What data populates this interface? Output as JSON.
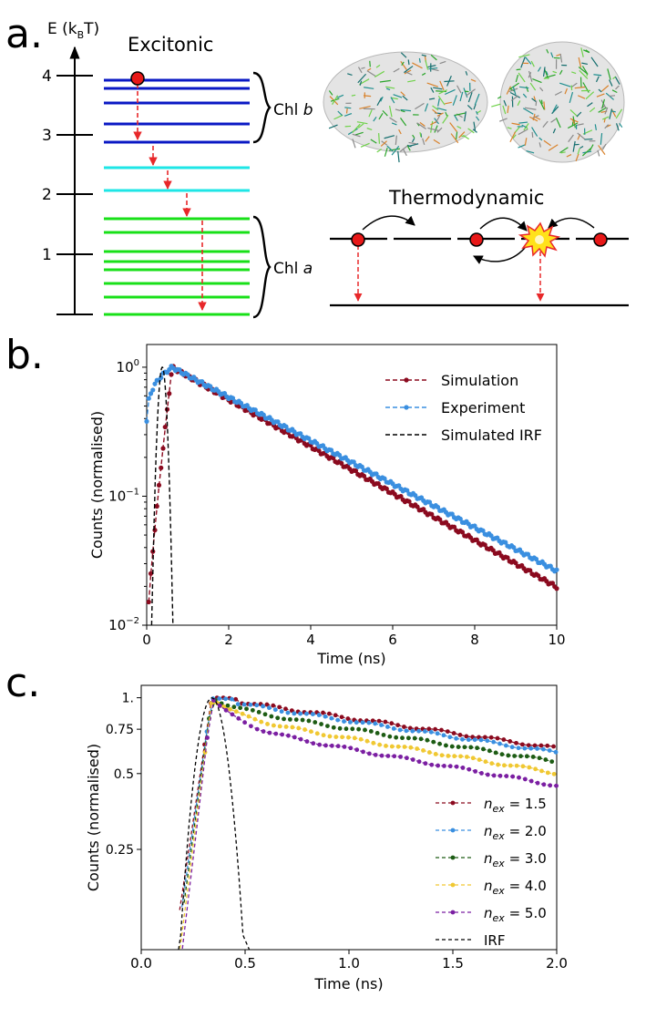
{
  "panel_a": {
    "label": "a.",
    "axis_label_E": "E (k",
    "axis_label_sub": "B",
    "axis_label_close": "T)",
    "ticks": [
      "4",
      "3",
      "2",
      "1"
    ],
    "excitonic_title": "Excitonic",
    "thermodynamic_title": "Thermodynamic",
    "chl_b_label": "Chl ",
    "chl_b_italic": "b",
    "chl_a_label": "Chl ",
    "chl_a_italic": "a",
    "colors": {
      "chl_b": "#0a18c4",
      "mid": "#1ee6e6",
      "chl_a": "#18e018",
      "arrow": "#e8282a",
      "dot": "#e81818"
    }
  },
  "chart_data": [
    {
      "panel": "b.",
      "type": "line",
      "ylog": true,
      "xlabel": "Time (ns)",
      "ylabel": "Counts (normalised)",
      "xlim": [
        0,
        10
      ],
      "ylim": [
        0.01,
        1.5
      ],
      "xticks": [
        "0",
        "2",
        "4",
        "6",
        "8",
        "10"
      ],
      "yticks": [
        {
          "base": "10",
          "exp": "0",
          "value": 1
        },
        {
          "base": "10",
          "exp": "−1",
          "value": 0.1
        },
        {
          "base": "10",
          "exp": "−2",
          "value": 0.01
        }
      ],
      "series": [
        {
          "name": "Simulation",
          "color": "#8b0a1f",
          "dash": true,
          "peak": 0.62,
          "decay": 2.39,
          "rise": 0.16,
          "start": 0.28
        },
        {
          "name": "Experiment",
          "color": "#3a8fe0",
          "dash": true,
          "peak": 0.62,
          "decay": 2.58,
          "rise": 0.22,
          "start": 0.0
        },
        {
          "name": "Simulated IRF",
          "color": "#000000",
          "dash": true,
          "irf": true,
          "center": 0.38,
          "sigma": 0.085
        }
      ],
      "legend": [
        "Simulation",
        "Experiment",
        "Simulated IRF"
      ]
    },
    {
      "panel": "c.",
      "type": "line",
      "ylog": true,
      "xlabel": "Time (ns)",
      "ylabel": "Counts (normalised)",
      "xlim": [
        0,
        2
      ],
      "ylim": [
        0.1,
        1.12
      ],
      "xticks": [
        "0.0",
        "0.5",
        "1.0",
        "1.5",
        "2.0"
      ],
      "yticks": [
        {
          "label": "1.",
          "value": 1
        },
        {
          "label": "0.75",
          "value": 0.75
        },
        {
          "label": "0.5",
          "value": 0.5
        },
        {
          "label": "0.25",
          "value": 0.25
        }
      ],
      "series": [
        {
          "name": "1.5",
          "color": "#8b0a1f",
          "peak_t": 0.45,
          "end": 0.61
        },
        {
          "name": "2.0",
          "color": "#3a8fe0",
          "peak_t": 0.44,
          "end": 0.6
        },
        {
          "name": "3.0",
          "color": "#1d5c14",
          "peak_t": 0.41,
          "end": 0.56
        },
        {
          "name": "4.0",
          "color": "#f0c832",
          "peak_t": 0.38,
          "end": 0.53
        },
        {
          "name": "5.0",
          "color": "#7b1fa2",
          "peak_t": 0.35,
          "end": 0.49
        },
        {
          "name": "IRF",
          "color": "#000000",
          "irf": true
        }
      ],
      "legend_prefix": "n",
      "legend_sub": "ex",
      "legend_eq": " = "
    }
  ]
}
